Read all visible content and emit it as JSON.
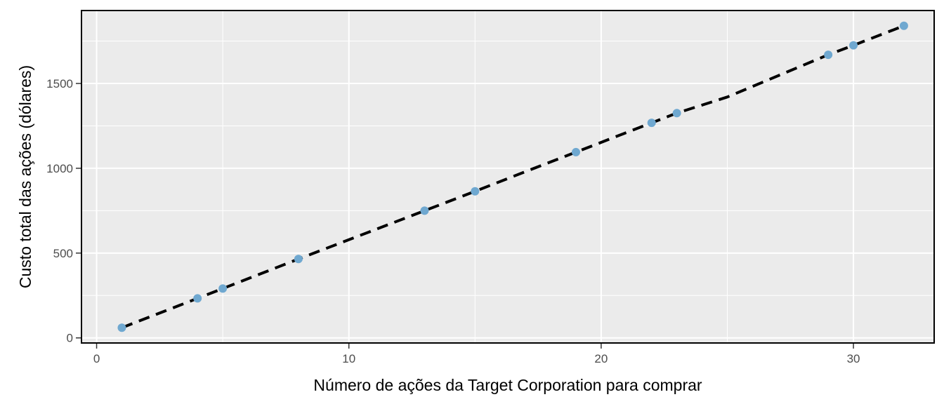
{
  "chart_data": {
    "type": "scatter",
    "xlabel": "Número de ações da Target Corporation para comprar",
    "ylabel": "Custo total das ações (dólares)",
    "xlim": [
      -0.6,
      33.2
    ],
    "ylim": [
      -30,
      1930
    ],
    "x_ticks": [
      0,
      10,
      20,
      30
    ],
    "y_ticks": [
      0,
      500,
      1000,
      1500
    ],
    "x_tick_labels": [
      "0",
      "10",
      "20",
      "30"
    ],
    "y_tick_labels": [
      "0",
      "500",
      "1000",
      "1500"
    ],
    "grid": true,
    "series": [
      {
        "kind": "points",
        "color": "#6fa8d0",
        "x": [
          1,
          4,
          5,
          8,
          13,
          15,
          19,
          22,
          23,
          29,
          30,
          32
        ],
        "y": [
          60,
          233,
          291,
          465,
          750,
          864,
          1095,
          1268,
          1325,
          1669,
          1725,
          1840
        ]
      },
      {
        "kind": "dashed-line",
        "color": "#000000",
        "x": [
          1,
          4,
          5,
          8,
          13,
          15,
          17,
          19,
          22,
          23,
          25,
          29,
          30,
          32
        ],
        "y": [
          60,
          233,
          291,
          465,
          750,
          864,
          980,
          1095,
          1268,
          1325,
          1420,
          1669,
          1725,
          1840
        ]
      }
    ],
    "colors": {
      "panel_background": "#ebebeb",
      "grid": "#ffffff",
      "point": "#6fa8d0",
      "line": "#000000",
      "border": "#000000"
    }
  }
}
